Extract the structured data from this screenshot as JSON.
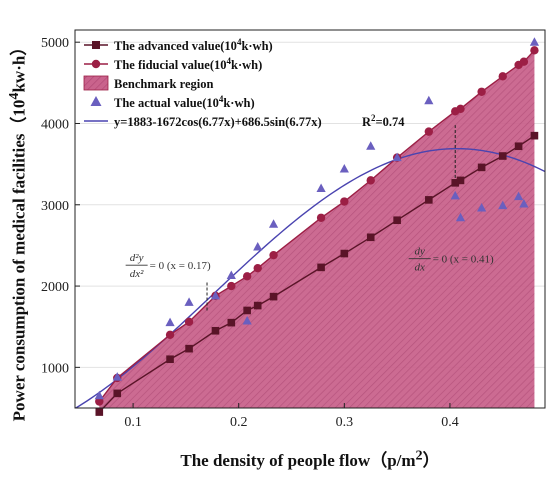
{
  "chart_data": {
    "type": "line",
    "xlabel_main": "The density of people flow（p/m",
    "xlabel_sup": "2",
    "xlabel_tail": "）",
    "ylabel_main": "Power consumption of medical facilities（10",
    "ylabel_sup": "4",
    "ylabel_tail": "kw·h）",
    "xlim": [
      0.045,
      0.49
    ],
    "ylim": [
      500,
      5150
    ],
    "xticks": [
      0.1,
      0.2,
      0.3,
      0.4
    ],
    "xtick_labels": [
      "0.1",
      "0.2",
      "0.3",
      "0.4"
    ],
    "yticks": [
      1000,
      2000,
      3000,
      4000,
      5000
    ],
    "ytick_labels": [
      "1000",
      "2000",
      "3000",
      "4000",
      "5000"
    ],
    "colors": {
      "advanced": "#5a1428",
      "fiducial": "#9c1f45",
      "region": "#c9638c",
      "actual": "#6a5fbf",
      "fit": "#4a44b0"
    },
    "legend": {
      "placement": "top-left",
      "items": [
        {
          "key": "advanced",
          "prefix": "The advanced value(10",
          "sup": "4",
          "suffix": "k·wh)"
        },
        {
          "key": "fiducial",
          "prefix": "The fiducial value(10",
          "sup": "4",
          "suffix": "k·wh)"
        },
        {
          "key": "region",
          "prefix": "Benchmark region",
          "sup": "",
          "suffix": ""
        },
        {
          "key": "actual",
          "prefix": "The actual value(10",
          "sup": "4",
          "suffix": "k·wh)"
        },
        {
          "key": "fit",
          "prefix": "y=1883-1672cos(6.77x)+686.5sin(6.77x)",
          "sup": "",
          "suffix": ""
        }
      ]
    },
    "r2": {
      "prefix": "R",
      "sup": "2",
      "suffix": "=0.74"
    },
    "series": [
      {
        "name": "The advanced value",
        "kind": "line-square",
        "x": [
          0.068,
          0.085,
          0.135,
          0.153,
          0.178,
          0.193,
          0.208,
          0.218,
          0.233,
          0.278,
          0.3,
          0.325,
          0.35,
          0.38,
          0.405,
          0.41,
          0.43,
          0.45,
          0.465,
          0.48
        ],
        "y": [
          450,
          680,
          1100,
          1230,
          1450,
          1550,
          1700,
          1760,
          1870,
          2230,
          2400,
          2600,
          2810,
          3060,
          3270,
          3300,
          3460,
          3600,
          3720,
          3850
        ]
      },
      {
        "name": "The fiducial value",
        "kind": "line-circle",
        "x": [
          0.068,
          0.085,
          0.135,
          0.153,
          0.178,
          0.193,
          0.208,
          0.218,
          0.233,
          0.278,
          0.3,
          0.325,
          0.35,
          0.38,
          0.405,
          0.41,
          0.43,
          0.45,
          0.465,
          0.47,
          0.48
        ],
        "y": [
          580,
          870,
          1400,
          1560,
          1880,
          2000,
          2120,
          2220,
          2380,
          2840,
          3040,
          3300,
          3580,
          3900,
          4150,
          4180,
          4390,
          4580,
          4720,
          4760,
          4900
        ]
      },
      {
        "name": "The actual value",
        "kind": "scatter-triangle",
        "x": [
          0.068,
          0.085,
          0.135,
          0.153,
          0.178,
          0.193,
          0.208,
          0.218,
          0.233,
          0.278,
          0.3,
          0.325,
          0.35,
          0.38,
          0.405,
          0.41,
          0.43,
          0.45,
          0.465,
          0.47,
          0.48
        ],
        "y": [
          650,
          880,
          1550,
          1800,
          1880,
          2130,
          1570,
          2480,
          2760,
          3200,
          3440,
          3720,
          3580,
          4280,
          3110,
          2840,
          2960,
          2990,
          3100,
          3010,
          5000
        ]
      }
    ],
    "fit": {
      "a": 1883,
      "b": -1672,
      "c": 686.5,
      "w": 6.77,
      "x_from": 0.045,
      "x_to": 0.49
    },
    "annotations": [
      {
        "key": "second-derivative",
        "frac_num": "d²y",
        "frac_den": "dx²",
        "rest": " = 0  (x = 0.17)",
        "x_marker": 0.17,
        "y_from": 1700,
        "y_to": 2050,
        "x_text": 0.092,
        "y_text": 2220
      },
      {
        "key": "first-derivative",
        "frac_num": "dy",
        "frac_den": "dx",
        "rest": " = 0  (x = 0.41)",
        "x_marker": 0.405,
        "y_from": 3330,
        "y_to": 3980,
        "x_text": 0.36,
        "y_text": 2300
      }
    ]
  }
}
